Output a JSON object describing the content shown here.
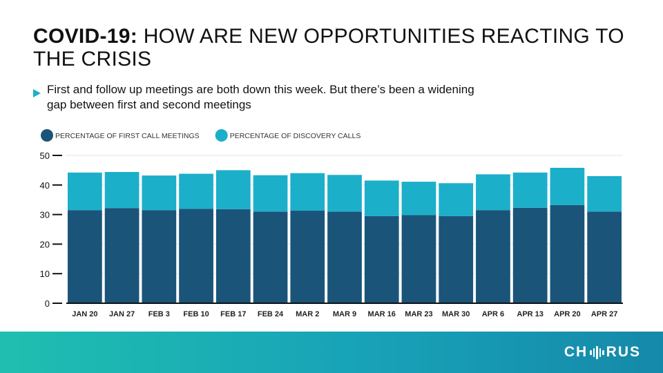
{
  "slide": {
    "title_bold": "COVID-19:",
    "title_rest": " HOW ARE NEW OPPORTUNITIES REACTING TO THE CRISIS",
    "bullet": "First and follow up meetings are both down this week. But there’s been a widening gap between first and second meetings"
  },
  "footer": {
    "logo_prefix": "CH",
    "logo_suffix": "RUS"
  },
  "colors": {
    "first_call": "#1b5479",
    "discovery": "#1cafc9",
    "footer_start": "#1fbfb0",
    "footer_end": "#1589a9"
  },
  "chart_data": {
    "type": "bar",
    "stacked": true,
    "title": "",
    "xlabel": "",
    "ylabel": "",
    "categories": [
      "JAN 20",
      "JAN 27",
      "FEB 3",
      "FEB 10",
      "FEB 17",
      "FEB 24",
      "MAR 2",
      "MAR 9",
      "MAR 16",
      "MAR 23",
      "MAR 30",
      "APR 6",
      "APR 13",
      "APR 20",
      "APR 27"
    ],
    "series": [
      {
        "name": "PERCENTAGE OF FIRST CALL MEETINGS",
        "color": "#1b5479",
        "values": [
          31.5,
          32.2,
          31.5,
          31.9,
          31.8,
          31.0,
          31.3,
          31.0,
          29.5,
          29.8,
          29.5,
          31.5,
          32.3,
          33.2,
          31.0
        ]
      },
      {
        "name": "PERCENTAGE OF DISCOVERY CALLS",
        "color": "#1cafc9",
        "values": [
          12.7,
          12.2,
          11.7,
          11.9,
          13.2,
          12.3,
          12.7,
          12.4,
          12.0,
          11.3,
          11.1,
          12.1,
          11.9,
          12.6,
          12.0
        ]
      }
    ],
    "ylim": [
      0,
      50
    ],
    "yticks": [
      0,
      10,
      20,
      30,
      40,
      50
    ],
    "grid": true,
    "legend_position": "top-left"
  }
}
